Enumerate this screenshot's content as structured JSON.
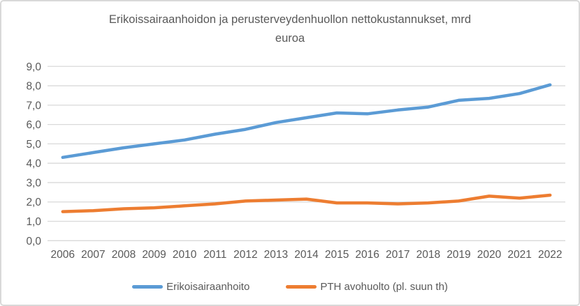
{
  "chart_data": {
    "type": "line",
    "title": "Erikoissairaanhoidon ja perusterveydenhuollon nettokustannukset, mrd euroa",
    "title_lines": [
      "Erikoissairaanhoidon ja perusterveydenhuollon nettokustannukset, mrd",
      "euroa"
    ],
    "categories": [
      "2006",
      "2007",
      "2008",
      "2009",
      "2010",
      "2011",
      "2012",
      "2013",
      "2014",
      "2015",
      "2016",
      "2017",
      "2018",
      "2019",
      "2020",
      "2021",
      "2022"
    ],
    "series": [
      {
        "name": "Erikoisairaanhoito",
        "color": "#5B9BD5",
        "values": [
          4.3,
          4.55,
          4.8,
          5.0,
          5.2,
          5.5,
          5.75,
          6.1,
          6.35,
          6.6,
          6.55,
          6.75,
          6.9,
          7.25,
          7.35,
          7.6,
          8.05
        ]
      },
      {
        "name": "PTH avohuolto (pl. suun th)",
        "color": "#ED7D31",
        "values": [
          1.5,
          1.55,
          1.65,
          1.7,
          1.8,
          1.9,
          2.05,
          2.1,
          2.15,
          1.95,
          1.95,
          1.9,
          1.95,
          2.05,
          2.3,
          2.2,
          2.35
        ]
      }
    ],
    "y_axis": {
      "values": [
        0,
        1,
        2,
        3,
        4,
        5,
        6,
        7,
        8,
        9
      ],
      "labels": [
        "0,0",
        "1,0",
        "2,0",
        "3,0",
        "4,0",
        "5,0",
        "6,0",
        "7,0",
        "8,0",
        "9,0"
      ]
    },
    "ylim": [
      0,
      9
    ],
    "grid": true,
    "legend_position": "bottom"
  },
  "colors": {
    "text": "#595959",
    "gridline": "#D9D9D9",
    "frame_border": "#D9D9D9",
    "background": "#FFFFFF",
    "series_blue": "#5B9BD5",
    "series_orange": "#ED7D31"
  }
}
